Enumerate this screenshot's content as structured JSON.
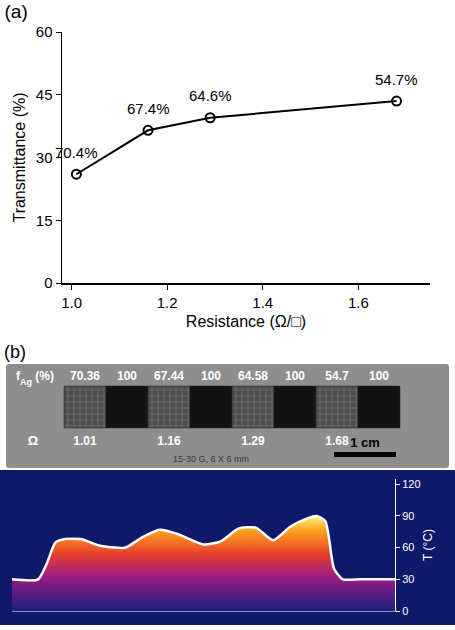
{
  "chart_data": [
    {
      "type": "line",
      "title": "(a)",
      "x": [
        1.01,
        1.16,
        1.29,
        1.68
      ],
      "values": [
        26,
        36.5,
        39.5,
        43.5
      ],
      "annotations": [
        "70.4%",
        "67.4%",
        "64.6%",
        "54.7%"
      ],
      "xlabel": "Resistance (Ω/□)",
      "ylabel": "Transmittance (%)",
      "xlim": [
        0.98,
        1.75
      ],
      "xticks": [
        {
          "value": 1,
          "label": "1.0"
        },
        {
          "value": 1.2,
          "label": "1.2"
        },
        {
          "value": 1.4,
          "label": "1.4"
        },
        {
          "value": 1.6,
          "label": "1.6"
        }
      ],
      "ylim": [
        0,
        60
      ],
      "yticks": [
        0,
        15,
        30,
        45,
        60
      ],
      "color": "#000000",
      "marker": "circle-open",
      "grid": false
    },
    {
      "type": "line",
      "x": [
        0,
        3,
        4,
        5,
        6,
        8,
        10,
        13,
        15,
        17,
        19,
        22,
        24,
        26,
        28,
        30,
        32,
        34,
        35,
        36,
        37,
        38,
        40,
        44
      ],
      "values": [
        30,
        30,
        45,
        65,
        68,
        68,
        62,
        60,
        70,
        77,
        73,
        63,
        66,
        78,
        79,
        67,
        80,
        88,
        90,
        85,
        40,
        30,
        30,
        30
      ],
      "ylabel": "T (°C)",
      "xlim": [
        0,
        44
      ],
      "ylim": [
        0,
        125
      ],
      "yticks": [
        0,
        30,
        60,
        90,
        120
      ],
      "tick_labels": "y",
      "color": "#ffffff",
      "grid": false
    }
  ],
  "photo": {
    "label": "(b)",
    "fAg_label": [
      "f",
      "Ag",
      " (%)"
    ],
    "resistance_label": "Ω",
    "columns": [
      {
        "fAg": 70.36,
        "resistance": 1.01
      },
      {
        "fAg": 100
      },
      {
        "fAg": 67.44,
        "resistance": 1.16
      },
      {
        "fAg": 100
      },
      {
        "fAg": 64.58,
        "resistance": 1.29
      },
      {
        "fAg": 100
      },
      {
        "fAg": 54.7,
        "resistance": 1.68
      },
      {
        "fAg": 100
      }
    ],
    "caption": "15-30 G, 6 X 6 mm",
    "scale_bar": "1 cm"
  }
}
